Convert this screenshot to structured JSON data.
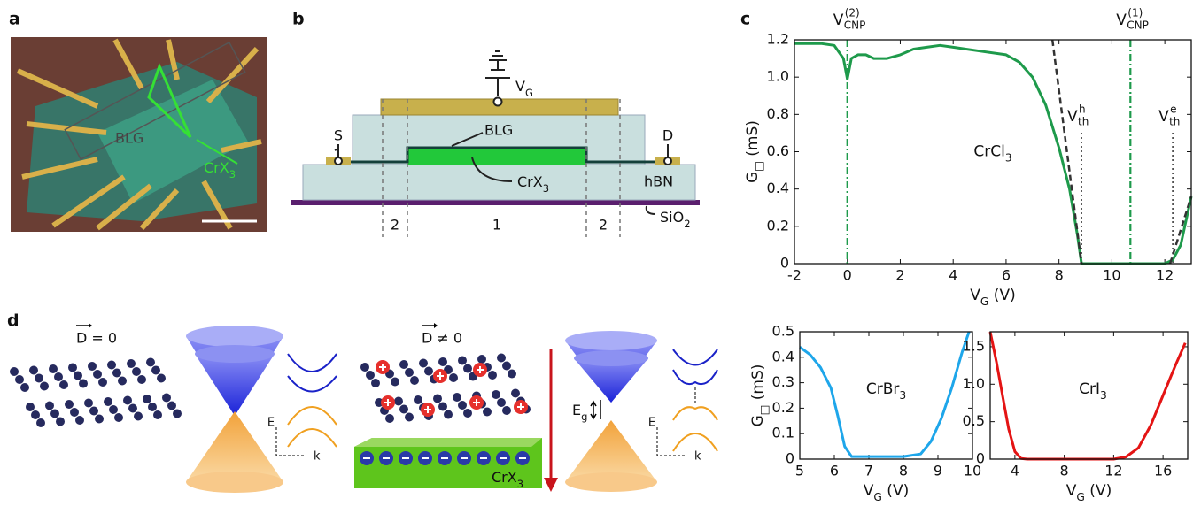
{
  "panel_a": {
    "letter": "a",
    "blg": "BLG",
    "crx": {
      "main": "CrX",
      "sub": "3"
    }
  },
  "panel_b": {
    "letter": "b",
    "vg": {
      "main": "V",
      "sub": "G"
    },
    "s": "S",
    "d": "D",
    "blg": "BLG",
    "crx": {
      "main": "CrX",
      "sub": "3"
    },
    "hbn": "hBN",
    "sio2": {
      "main": "SiO",
      "sub": "2"
    },
    "regions": [
      "2",
      "1",
      "2"
    ]
  },
  "panel_c_letter": "c",
  "panel_d": {
    "letter": "d",
    "left_title": "D = 0",
    "right_title": "D ≠ 0",
    "gap": {
      "main": "E",
      "sub": "g"
    },
    "axis_e": "E",
    "axis_k": "k",
    "crx": {
      "main": "CrX",
      "sub": "3"
    }
  },
  "chart_data": [
    {
      "type": "line",
      "annotation": {
        "main": "CrCl",
        "sub": "3"
      },
      "xlabel": {
        "main": "V",
        "sub": "G",
        "rest": " (V)"
      },
      "ylabel": {
        "main": "G",
        "sub": "□",
        "rest": " (mS)"
      },
      "xlim": [
        -2,
        13
      ],
      "ylim": [
        0,
        1.2
      ],
      "xticks": [
        -2,
        0,
        2,
        4,
        6,
        8,
        10,
        12
      ],
      "yticks": [
        0,
        0.2,
        0.4,
        0.6,
        0.8,
        {
          "value": 1,
          "label": "1.0"
        },
        1.2
      ],
      "series": [
        {
          "color": "#1e9a4b",
          "x": [
            -2,
            -1,
            -0.5,
            -0.15,
            0,
            0.15,
            0.4,
            0.7,
            1,
            1.5,
            2,
            2.5,
            3,
            3.5,
            4,
            5,
            6,
            6.5,
            7,
            7.5,
            8,
            8.4,
            8.7,
            8.85,
            9,
            10,
            11,
            12,
            12.3,
            12.6,
            13
          ],
          "values": [
            1.18,
            1.18,
            1.17,
            1.1,
            0.99,
            1.1,
            1.12,
            1.12,
            1.1,
            1.1,
            1.12,
            1.15,
            1.16,
            1.17,
            1.16,
            1.14,
            1.12,
            1.08,
            1.0,
            0.85,
            0.62,
            0.4,
            0.15,
            0,
            0,
            0,
            0,
            0,
            0.02,
            0.1,
            0.36
          ]
        },
        {
          "color": "#333333",
          "style": "dashed",
          "x": [
            7.75,
            8.85
          ],
          "values": [
            1.2,
            0
          ]
        },
        {
          "color": "#333333",
          "style": "dashed",
          "x": [
            12.2,
            13
          ],
          "values": [
            0,
            0.36
          ]
        }
      ],
      "vlines": [
        {
          "x": 0,
          "color": "#1e9a4b",
          "style": "dashdot",
          "label": {
            "main": "V",
            "sub": "CNP",
            "sup": "(2)"
          }
        },
        {
          "x": 10.7,
          "color": "#1e9a4b",
          "style": "dashdot",
          "label": {
            "main": "V",
            "sub": "CNP",
            "sup": "(1)"
          }
        },
        {
          "x": 8.85,
          "color": "#333333",
          "style": "dotted",
          "label": {
            "main": "V",
            "sub": "th",
            "sup": "h"
          }
        },
        {
          "x": 12.3,
          "color": "#333333",
          "style": "dotted",
          "label": {
            "main": "V",
            "sub": "th",
            "sup": "e"
          }
        }
      ]
    },
    {
      "type": "line",
      "annotation": {
        "main": "CrBr",
        "sub": "3"
      },
      "xlabel": {
        "main": "V",
        "sub": "G",
        "rest": " (V)"
      },
      "ylabel": {
        "main": "G",
        "sub": "□",
        "rest": " (mS)"
      },
      "xlim": [
        5,
        10
      ],
      "ylim": [
        0,
        0.5
      ],
      "xticks": [
        5,
        6,
        7,
        8,
        9,
        10
      ],
      "yticks": [
        0,
        0.1,
        0.2,
        0.3,
        0.4,
        0.5
      ],
      "series": [
        {
          "color": "#1ea6ea",
          "x": [
            5,
            5.3,
            5.6,
            5.9,
            6.1,
            6.3,
            6.5,
            7,
            8,
            8.5,
            8.8,
            9.1,
            9.4,
            9.7,
            9.9
          ],
          "values": [
            0.44,
            0.41,
            0.36,
            0.28,
            0.17,
            0.05,
            0.01,
            0.01,
            0.01,
            0.02,
            0.07,
            0.16,
            0.28,
            0.42,
            0.5
          ]
        }
      ]
    },
    {
      "type": "line",
      "annotation": {
        "main": "CrI",
        "sub": "3"
      },
      "xlabel": {
        "main": "V",
        "sub": "G",
        "rest": " (V)"
      },
      "xlim": [
        2,
        18
      ],
      "ylim": [
        0,
        1.7
      ],
      "xticks": [
        4,
        8,
        12,
        16
      ],
      "yticks": [
        0,
        0.5,
        {
          "value": 1,
          "label": "1.0"
        },
        1.5
      ],
      "series": [
        {
          "color": "#e41414",
          "x": [
            2,
            2.5,
            3,
            3.5,
            4,
            4.5,
            5,
            8,
            12,
            13,
            14,
            15,
            16,
            17,
            17.8
          ],
          "values": [
            1.7,
            1.3,
            0.85,
            0.4,
            0.1,
            0.01,
            0,
            0,
            0,
            0.03,
            0.15,
            0.45,
            0.85,
            1.25,
            1.55
          ]
        }
      ]
    }
  ]
}
